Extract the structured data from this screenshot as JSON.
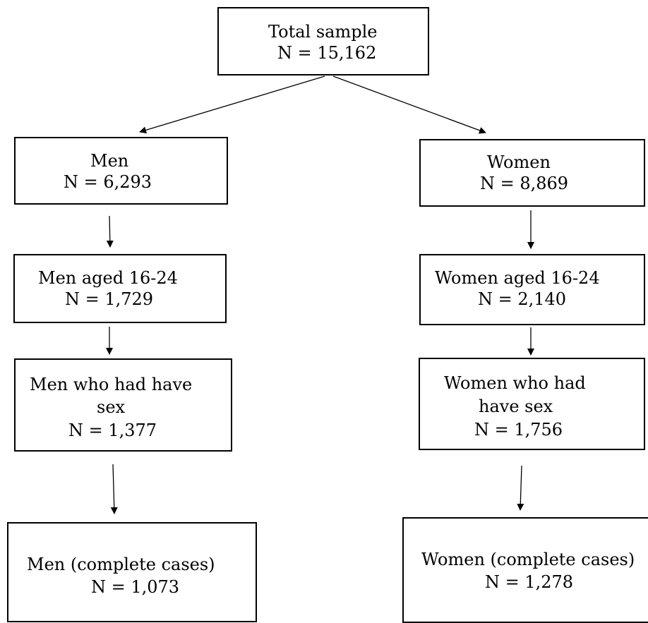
{
  "diagram": {
    "boxes": {
      "total": {
        "line1": "Total sample",
        "line2": "N = 15,162"
      },
      "men": {
        "line1": "Men",
        "line2": "N = 6,293"
      },
      "women": {
        "line1": "Women",
        "line2": "N = 8,869"
      },
      "men_aged": {
        "line1": "Men aged 16-24",
        "line2": "N = 1,729"
      },
      "women_aged": {
        "line1": "Women aged 16-24",
        "line2": "N = 2,140"
      },
      "men_sex": {
        "line1": "Men who had have",
        "line2": "sex",
        "line3": "N = 1,377"
      },
      "women_sex": {
        "line1": "Women who had",
        "line2": "have sex",
        "line3": "N = 1,756"
      },
      "men_complete": {
        "line1": "Men (complete cases)",
        "line2": "N = 1,073"
      },
      "women_complete": {
        "line1": "Women (complete cases)",
        "line2": "N = 1,278"
      }
    },
    "edges": [
      {
        "from": "total",
        "to": "men"
      },
      {
        "from": "total",
        "to": "women"
      },
      {
        "from": "men",
        "to": "men_aged"
      },
      {
        "from": "men_aged",
        "to": "men_sex"
      },
      {
        "from": "men_sex",
        "to": "men_complete"
      },
      {
        "from": "women",
        "to": "women_aged"
      },
      {
        "from": "women_aged",
        "to": "women_sex"
      },
      {
        "from": "women_sex",
        "to": "women_complete"
      }
    ]
  }
}
